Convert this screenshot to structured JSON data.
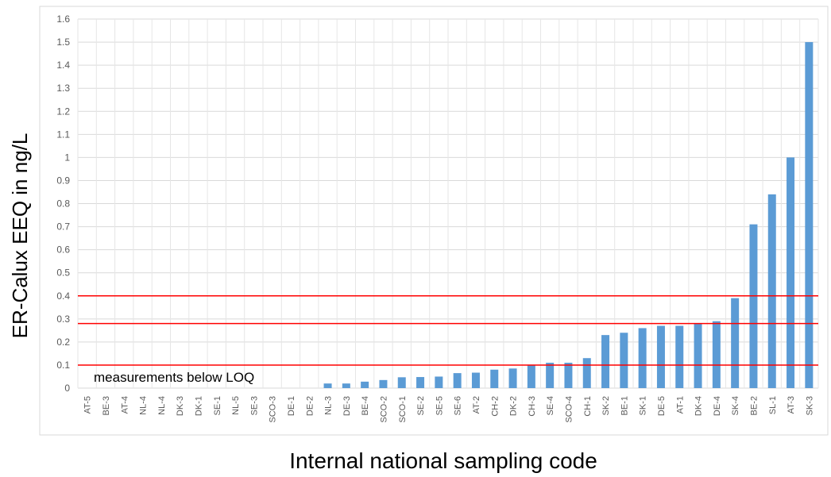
{
  "chart_data": {
    "type": "bar",
    "title": "",
    "xlabel": "Internal national sampling code",
    "ylabel": "ER-Calux EEQ in ng/L",
    "ylim": [
      0,
      1.6
    ],
    "yticks": [
      "0",
      "0.1",
      "0.2",
      "0.3",
      "0.4",
      "0.5",
      "0.6",
      "0.7",
      "0.8",
      "0.9",
      "1",
      "1.1",
      "1.2",
      "1.3",
      "1.4",
      "1.5",
      "1.6"
    ],
    "grid": true,
    "categories": [
      "AT-5",
      "BE-3",
      "AT-4",
      "NL-4",
      "NL-4",
      "DK-3",
      "DK-1",
      "SE-1",
      "NL-5",
      "SE-3",
      "SCO-3",
      "DE-1",
      "DE-2",
      "NL-3",
      "DE-3",
      "BE-4",
      "SCO-2",
      "SCO-1",
      "SE-2",
      "SE-5",
      "SE-6",
      "AT-2",
      "CH-2",
      "DK-2",
      "CH-3",
      "SE-4",
      "SCO-4",
      "CH-1",
      "SK-2",
      "BE-1",
      "SK-1",
      "DE-5",
      "AT-1",
      "DK-4",
      "DE-4",
      "SK-4",
      "BE-2",
      "SL-1",
      "AT-3",
      "SK-3"
    ],
    "values": [
      0,
      0,
      0,
      0,
      0,
      0,
      0,
      0,
      0,
      0,
      0,
      0,
      0,
      0.02,
      0.02,
      0.028,
      0.035,
      0.047,
      0.048,
      0.05,
      0.065,
      0.067,
      0.08,
      0.085,
      0.1,
      0.11,
      0.11,
      0.13,
      0.23,
      0.24,
      0.26,
      0.27,
      0.27,
      0.28,
      0.29,
      0.39,
      0.71,
      0.84,
      1.0,
      1.5
    ],
    "bar_color": "#5b9bd5",
    "reference_lines": [
      0.1,
      0.28,
      0.4
    ],
    "reference_line_color": "#ff0000",
    "annotation": "measurements below LOQ"
  }
}
